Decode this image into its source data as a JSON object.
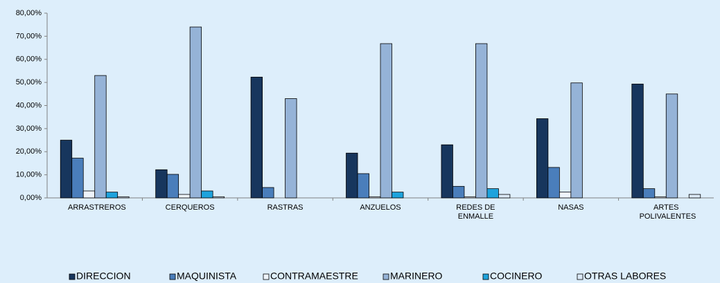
{
  "chart_data": {
    "type": "bar",
    "categories": [
      "ARRASTREROS",
      "CERQUEROS",
      "RASTRAS",
      "ANZUELOS",
      "REDES DE ENMALLE",
      "NASAS",
      "ARTES POLIVALENTES"
    ],
    "series": [
      {
        "name": "DIRECCION",
        "color": "#17365d",
        "values": [
          25,
          12.2,
          52.3,
          19.4,
          23,
          34.3,
          49.3
        ]
      },
      {
        "name": "MAQUINISTA",
        "color": "#4a7ebb",
        "values": [
          17.2,
          10.2,
          4.5,
          10.5,
          5,
          13.2,
          4
        ]
      },
      {
        "name": "CONTRAMAESTRE",
        "color": "#eef4fb",
        "values": [
          3,
          1.5,
          0,
          0.5,
          0.5,
          2.5,
          0.5
        ]
      },
      {
        "name": "MARINERO",
        "color": "#95b3d7",
        "values": [
          53,
          74,
          43,
          66.8,
          66.8,
          49.8,
          45
        ]
      },
      {
        "name": "COCINERO",
        "color": "#1ea3dc",
        "values": [
          2.5,
          3,
          0,
          2.5,
          4,
          0,
          0
        ]
      },
      {
        "name": "OTRAS LABORES",
        "color": "#dbe9f7",
        "values": [
          0.5,
          0.5,
          0,
          0,
          1.5,
          0,
          1.5
        ]
      }
    ],
    "ylim": [
      0,
      80
    ],
    "yticks": [
      {
        "value": 0,
        "label": "0,00%"
      },
      {
        "value": 10,
        "label": "10,00%"
      },
      {
        "value": 20,
        "label": "20,00%"
      },
      {
        "value": 30,
        "label": "30,00%"
      },
      {
        "value": 40,
        "label": "40,00%"
      },
      {
        "value": 50,
        "label": "50,00%"
      },
      {
        "value": 60,
        "label": "60,00%"
      },
      {
        "value": 70,
        "label": "70,00%"
      },
      {
        "value": 80,
        "label": "80,00%"
      }
    ],
    "legend": "bottom"
  }
}
